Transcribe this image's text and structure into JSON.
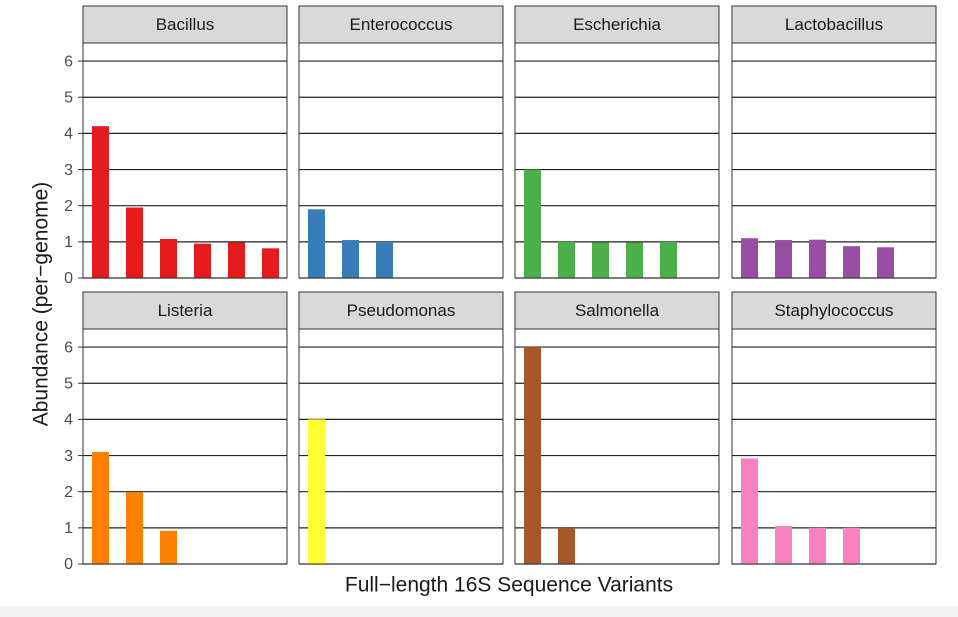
{
  "chart_data": {
    "type": "bar",
    "layout": "faceted 2x4 grid",
    "xlabel": "Full−length 16S Sequence Variants",
    "ylabel": "Abundance (per−genome)",
    "ylim": [
      0,
      6.5
    ],
    "yticks": [
      "0",
      "1",
      "2",
      "3",
      "4",
      "5",
      "6"
    ],
    "grid": true,
    "x_tick_labels_shown": false,
    "panels": [
      {
        "name": "Bacillus",
        "color": "#e41a1c",
        "values": [
          4.2,
          1.95,
          1.08,
          0.95,
          0.98,
          0.82
        ]
      },
      {
        "name": "Enterococcus",
        "color": "#377eb8",
        "values": [
          1.9,
          1.05,
          1.0
        ]
      },
      {
        "name": "Escherichia",
        "color": "#4daf4a",
        "values": [
          3.0,
          1.0,
          0.98,
          0.98,
          1.0
        ]
      },
      {
        "name": "Lactobacillus",
        "color": "#984ea3",
        "values": [
          1.1,
          1.05,
          1.06,
          0.88,
          0.85
        ]
      },
      {
        "name": "Listeria",
        "color": "#ff7f00",
        "values": [
          3.1,
          1.98,
          0.92
        ]
      },
      {
        "name": "Pseudomonas",
        "color": "#ffff33",
        "values": [
          4.0
        ]
      },
      {
        "name": "Salmonella",
        "color": "#a65628",
        "values": [
          6.0,
          1.0
        ]
      },
      {
        "name": "Staphylococcus",
        "color": "#f781bf",
        "values": [
          2.92,
          1.05,
          1.0,
          1.0
        ]
      }
    ]
  }
}
